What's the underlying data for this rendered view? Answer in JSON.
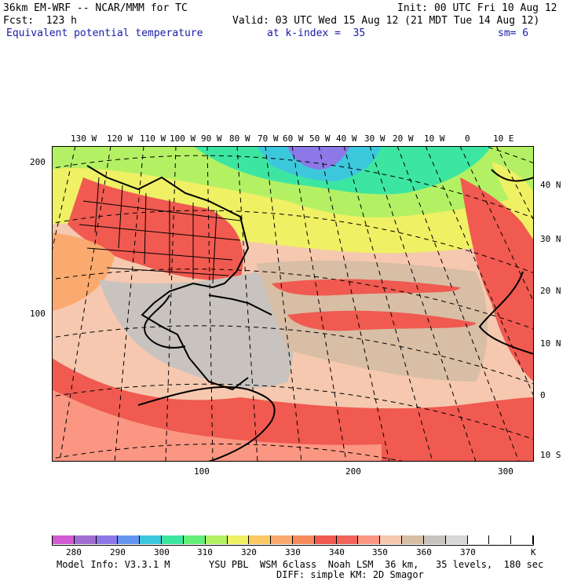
{
  "header": {
    "model_title": "36km EM-WRF -- NCAR/MMM for TC",
    "init": "Init: 00 UTC Fri 10 Aug 12",
    "forecast": "Fcst:  123 h",
    "valid": "Valid: 03 UTC Wed 15 Aug 12 (21 MDT Tue 14 Aug 12)",
    "field_name": "Equivalent potential temperature",
    "level": "at k-index =  35",
    "smoothing": "sm= 6"
  },
  "map": {
    "top_lon_labels": [
      "130 W",
      "120 W",
      "110 W",
      "100 W",
      "90 W",
      "80 W",
      "70 W",
      "60 W",
      "50 W",
      "40 W",
      "30 W",
      "20 W",
      "10 W",
      "0",
      "10 E"
    ],
    "right_lat_labels": [
      "40 N",
      "30 N",
      "20 N",
      "10 N",
      "0",
      "10 S"
    ],
    "left_grid_labels": [
      "200",
      "100"
    ],
    "bottom_grid_labels": [
      "100",
      "200",
      "300"
    ]
  },
  "legend": {
    "colors": [
      "#d25ad2",
      "#a06ed2",
      "#8c78e6",
      "#6496f0",
      "#3cc8dc",
      "#3ce6a0",
      "#64f078",
      "#b4f064",
      "#f0f064",
      "#fac864",
      "#faaa6e",
      "#f58c5a",
      "#f05a50",
      "#f0645a",
      "#fa9682",
      "#f5c8af",
      "#d7bea5",
      "#c8c3be",
      "#d7d7d7",
      "#ffffff",
      "#ffffff",
      "#ffffff"
    ],
    "labels": [
      "280",
      "290",
      "300",
      "310",
      "320",
      "330",
      "340",
      "350",
      "360",
      "370"
    ],
    "unit": "K"
  },
  "footer": {
    "model_info": "Model Info: V3.3.1 M",
    "physics_line1": "YSU PBL  WSM 6class  Noah LSM  36 km,   35 levels,  180 sec",
    "physics_line2": "DIFF: simple KM: 2D Smagor"
  }
}
